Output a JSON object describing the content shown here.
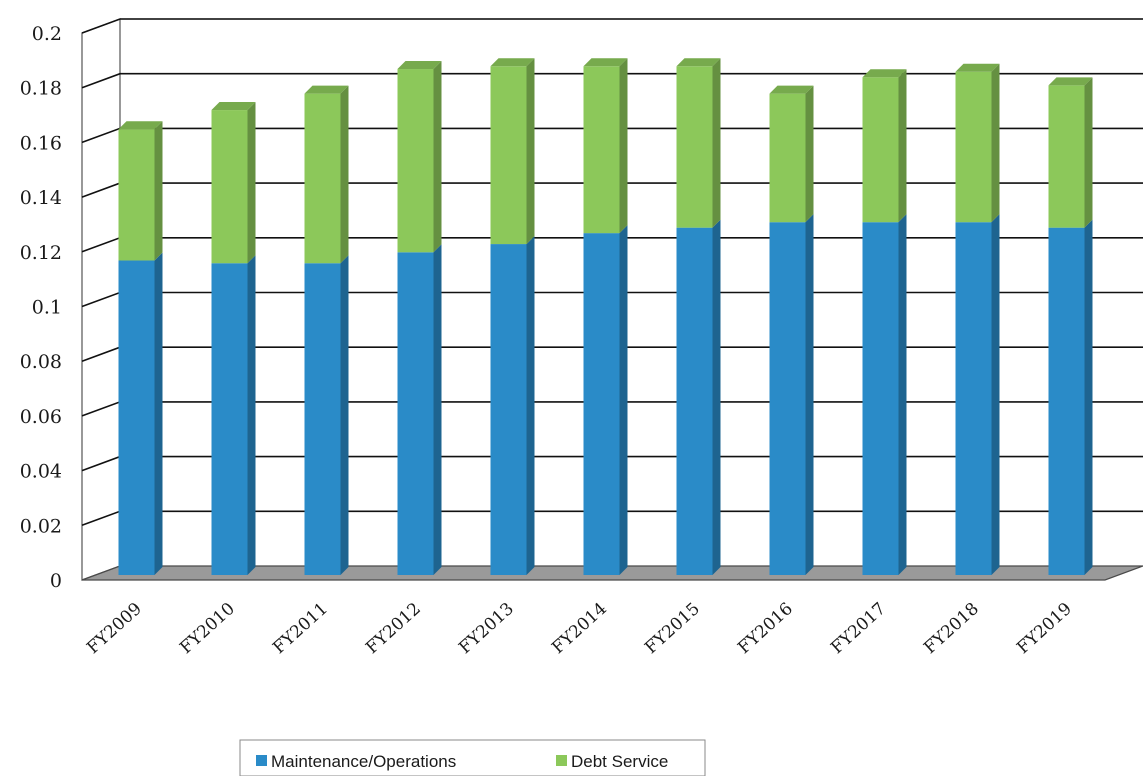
{
  "chart_data": {
    "type": "bar",
    "stacked": true,
    "three_d": true,
    "categories": [
      "FY2009",
      "FY2010",
      "FY2011",
      "FY2012",
      "FY2013",
      "FY2014",
      "FY2015",
      "FY2016",
      "FY2017",
      "FY2018",
      "FY2019"
    ],
    "series": [
      {
        "name": "Maintenance/Operations",
        "color": "#2a8bc8",
        "values": [
          0.115,
          0.114,
          0.114,
          0.118,
          0.121,
          0.125,
          0.127,
          0.129,
          0.129,
          0.129,
          0.127
        ]
      },
      {
        "name": "Debt Service",
        "color": "#8cc85a",
        "values": [
          0.048,
          0.056,
          0.062,
          0.067,
          0.065,
          0.061,
          0.059,
          0.047,
          0.053,
          0.055,
          0.052
        ]
      }
    ],
    "y_ticks": [
      "0",
      "0.02",
      "0.04",
      "0.06",
      "0.08",
      "0.1",
      "0.12",
      "0.14",
      "0.16",
      "0.18",
      "0.2"
    ],
    "ylim": [
      0,
      0.2
    ],
    "grid": true,
    "legend_position": "bottom",
    "title": "",
    "xlabel": "",
    "ylabel": ""
  }
}
